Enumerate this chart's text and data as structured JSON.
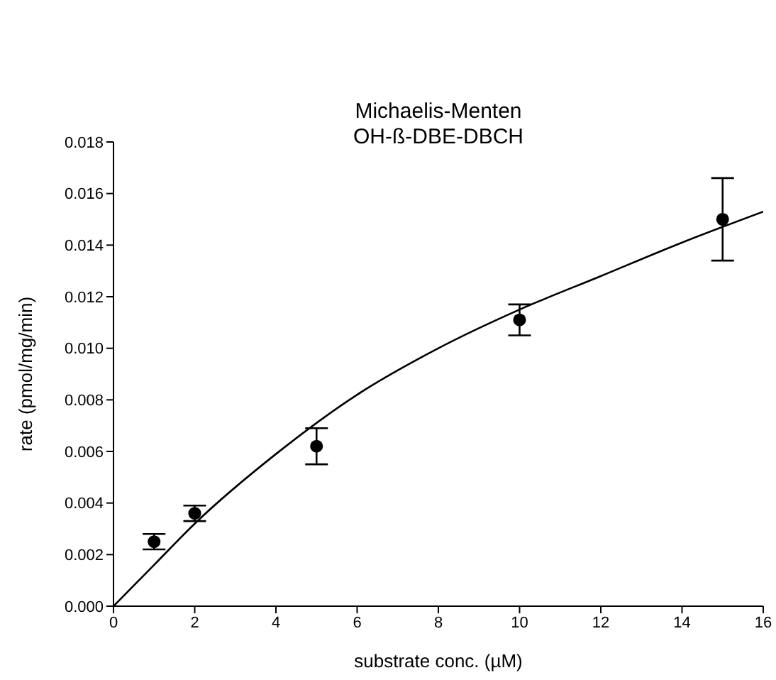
{
  "chart_data": {
    "type": "scatter",
    "title": "Michaelis-Menten",
    "subtitle": "OH-ß-DBE-DBCH",
    "xlabel": "substrate conc. (µM)",
    "ylabel": "rate (pmol/mg/min)",
    "series": [
      {
        "color": "#000000",
        "marker": "circle",
        "x": [
          1,
          2,
          5,
          10,
          15
        ],
        "values": [
          0.0025,
          0.0036,
          0.0062,
          0.0111,
          0.015
        ],
        "errors": [
          0.0003,
          0.0003,
          0.0007,
          0.0006,
          0.0016
        ]
      },
      {
        "type": "line",
        "color": "#000000",
        "marker": "none",
        "line_style": "solid",
        "x": [
          0,
          1,
          2,
          4,
          6,
          8,
          10,
          12,
          14,
          16
        ],
        "values": [
          0,
          0.0016,
          0.0032,
          0.0059,
          0.0082,
          0.01,
          0.0115,
          0.0128,
          0.0141,
          0.0153
        ]
      }
    ],
    "xlim": [
      0,
      16
    ],
    "xticks": [
      0,
      2,
      4,
      6,
      8,
      10,
      12,
      14,
      16
    ],
    "ylim": [
      0,
      0.018
    ],
    "yticks": [
      {
        "value": 0,
        "label": "0.000"
      },
      {
        "value": 0.002,
        "label": "0.002"
      },
      {
        "value": 0.004,
        "label": "0.004"
      },
      {
        "value": 0.006,
        "label": "0.006"
      },
      {
        "value": 0.008,
        "label": "0.008"
      },
      {
        "value": 0.01,
        "label": "0.010"
      },
      {
        "value": 0.012,
        "label": "0.012"
      },
      {
        "value": 0.014,
        "label": "0.014"
      },
      {
        "value": 0.016,
        "label": "0.016"
      },
      {
        "value": 0.018,
        "label": "0.018"
      }
    ],
    "grid": false
  }
}
